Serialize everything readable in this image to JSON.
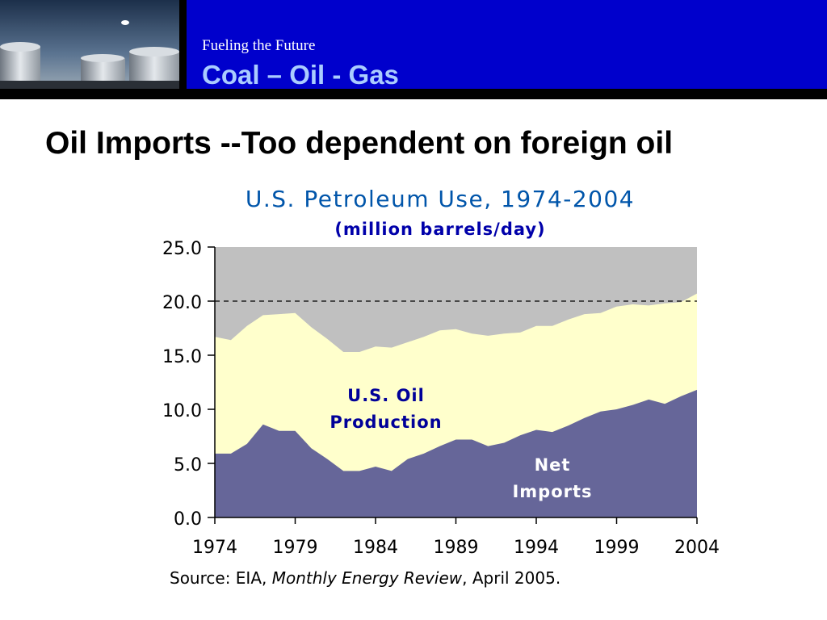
{
  "header": {
    "subtitle": "Fueling the Future",
    "title": "Coal – Oil - Gas",
    "colors": {
      "band": "#0000cc",
      "title": "#aaccff"
    }
  },
  "slide": {
    "title": "Oil Imports --Too dependent on foreign oil",
    "source_prefix": "Source: EIA, ",
    "source_italic": "Monthly Energy Review",
    "source_suffix": ", April 2005."
  },
  "chart_data": {
    "type": "area",
    "title": "U.S. Petroleum Use, 1974-2004",
    "subtitle": "(million barrels/day)",
    "x": [
      1974,
      1975,
      1976,
      1977,
      1978,
      1979,
      1980,
      1981,
      1982,
      1983,
      1984,
      1985,
      1986,
      1987,
      1988,
      1989,
      1990,
      1991,
      1992,
      1993,
      1994,
      1995,
      1996,
      1997,
      1998,
      1999,
      2000,
      2001,
      2002,
      2003,
      2004
    ],
    "xticks": [
      "1974",
      "1979",
      "1984",
      "1989",
      "1994",
      "1999",
      "2004"
    ],
    "yticks": [
      "0.0",
      "5.0",
      "10.0",
      "15.0",
      "20.0",
      "25.0"
    ],
    "ylim": [
      0,
      25
    ],
    "xlim": [
      1974,
      2004
    ],
    "reference_line": 20.0,
    "series": [
      {
        "name": "Net Imports",
        "color": "#666699",
        "values": [
          5.9,
          5.9,
          6.8,
          8.6,
          8.0,
          8.0,
          6.4,
          5.4,
          4.3,
          4.3,
          4.7,
          4.3,
          5.4,
          5.9,
          6.6,
          7.2,
          7.2,
          6.6,
          6.9,
          7.6,
          8.1,
          7.9,
          8.5,
          9.2,
          9.8,
          10.0,
          10.4,
          10.9,
          10.5,
          11.2,
          11.8
        ]
      },
      {
        "name": "U.S. Oil Production",
        "color": "#ffffcc",
        "values": [
          10.8,
          10.5,
          10.9,
          10.1,
          10.8,
          10.9,
          11.2,
          11.1,
          11.0,
          11.0,
          11.1,
          11.4,
          10.8,
          10.8,
          10.7,
          10.2,
          9.8,
          10.2,
          10.1,
          9.5,
          9.6,
          9.8,
          9.8,
          9.6,
          9.1,
          9.5,
          9.3,
          8.7,
          9.3,
          8.7,
          8.9
        ]
      }
    ],
    "labels": {
      "production": [
        "U.S. Oil",
        "Production"
      ],
      "imports": [
        "Net",
        "Imports"
      ]
    },
    "background_color": "#c0c0c0"
  }
}
